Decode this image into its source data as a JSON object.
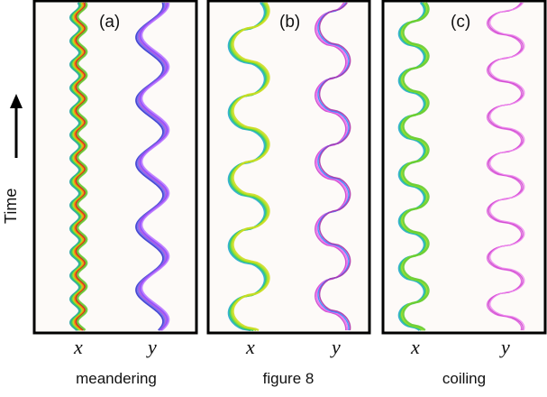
{
  "time_label": "Time",
  "panels": [
    {
      "letter": "(a)",
      "x_label": "x",
      "y_label": "y",
      "mode": "meandering"
    },
    {
      "letter": "(b)",
      "x_label": "x",
      "y_label": "y",
      "mode": "figure 8"
    },
    {
      "letter": "(c)",
      "x_label": "x",
      "y_label": "y",
      "mode": "coiling"
    }
  ]
}
